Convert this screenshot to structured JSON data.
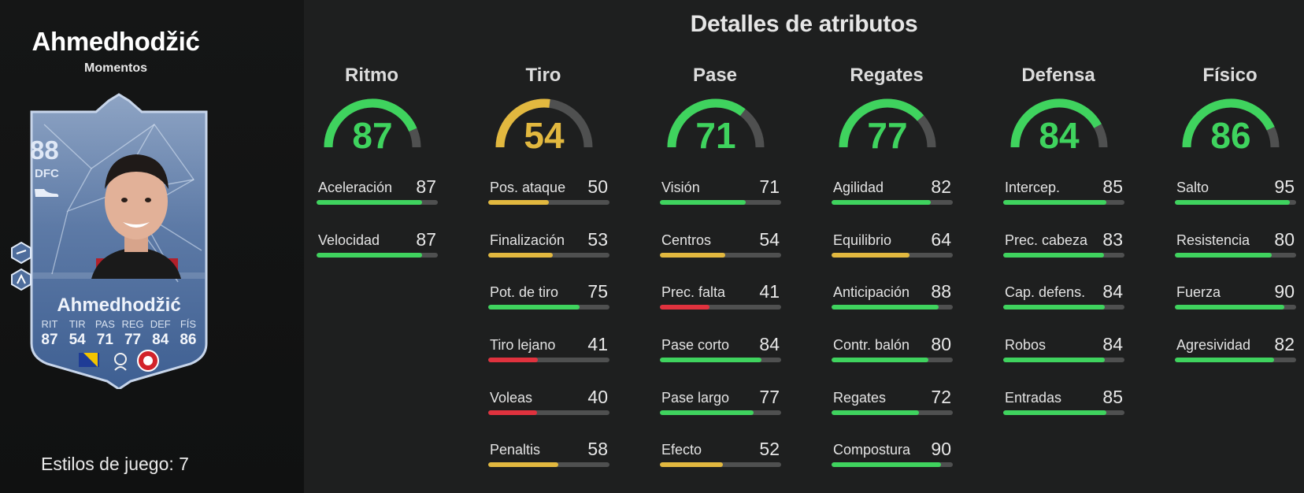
{
  "player": {
    "name": "Ahmedhodžić",
    "card_type": "Momentos",
    "rating": "88",
    "position": "DFC",
    "card_stats": [
      {
        "label": "RIT",
        "value": "87"
      },
      {
        "label": "TIR",
        "value": "54"
      },
      {
        "label": "PAS",
        "value": "71"
      },
      {
        "label": "REG",
        "value": "77"
      },
      {
        "label": "DEF",
        "value": "84"
      },
      {
        "label": "FÍS",
        "value": "86"
      }
    ],
    "playstyles_text": "Estilos de juego: 7"
  },
  "title": "Detalles de atributos",
  "colors": {
    "high": "#3fd35e",
    "mid": "#e2b83f",
    "low": "#e0323e",
    "track": "#4f5050"
  },
  "categories": [
    {
      "label": "Ritmo",
      "value": 87,
      "attrs": [
        {
          "name": "Aceleración",
          "value": 87
        },
        {
          "name": "Velocidad",
          "value": 87
        }
      ]
    },
    {
      "label": "Tiro",
      "value": 54,
      "attrs": [
        {
          "name": "Pos. ataque",
          "value": 50
        },
        {
          "name": "Finalización",
          "value": 53
        },
        {
          "name": "Pot. de tiro",
          "value": 75
        },
        {
          "name": "Tiro lejano",
          "value": 41
        },
        {
          "name": "Voleas",
          "value": 40
        },
        {
          "name": "Penaltis",
          "value": 58
        }
      ]
    },
    {
      "label": "Pase",
      "value": 71,
      "attrs": [
        {
          "name": "Visión",
          "value": 71
        },
        {
          "name": "Centros",
          "value": 54
        },
        {
          "name": "Prec. falta",
          "value": 41
        },
        {
          "name": "Pase corto",
          "value": 84
        },
        {
          "name": "Pase largo",
          "value": 77
        },
        {
          "name": "Efecto",
          "value": 52
        }
      ]
    },
    {
      "label": "Regates",
      "value": 77,
      "attrs": [
        {
          "name": "Agilidad",
          "value": 82
        },
        {
          "name": "Equilibrio",
          "value": 64
        },
        {
          "name": "Anticipación",
          "value": 88
        },
        {
          "name": "Contr. balón",
          "value": 80
        },
        {
          "name": "Regates",
          "value": 72
        },
        {
          "name": "Compostura",
          "value": 90
        }
      ]
    },
    {
      "label": "Defensa",
      "value": 84,
      "attrs": [
        {
          "name": "Intercep.",
          "value": 85
        },
        {
          "name": "Prec. cabeza",
          "value": 83
        },
        {
          "name": "Cap. defens.",
          "value": 84
        },
        {
          "name": "Robos",
          "value": 84
        },
        {
          "name": "Entradas",
          "value": 85
        }
      ]
    },
    {
      "label": "Físico",
      "value": 86,
      "attrs": [
        {
          "name": "Salto",
          "value": 95
        },
        {
          "name": "Resistencia",
          "value": 80
        },
        {
          "name": "Fuerza",
          "value": 90
        },
        {
          "name": "Agresividad",
          "value": 82
        }
      ]
    }
  ]
}
